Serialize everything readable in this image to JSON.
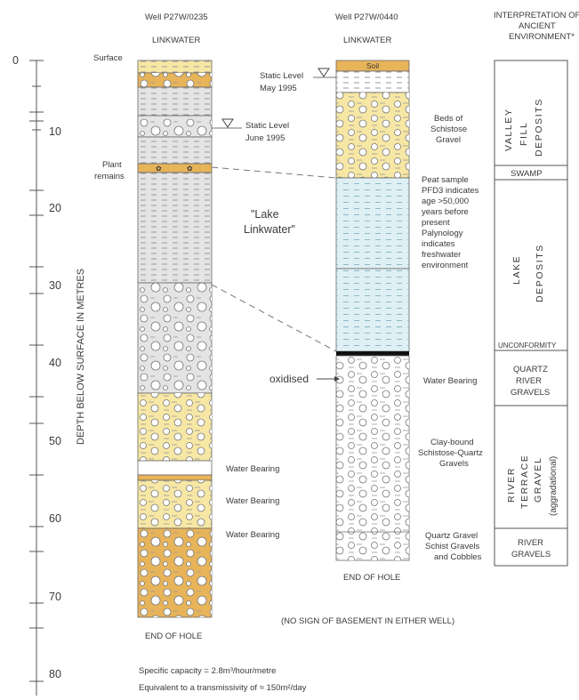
{
  "axis": {
    "label": "DEPTH BELOW SURFACE IN METRES",
    "ticks": [
      "0",
      "10",
      "20",
      "30",
      "40",
      "50",
      "60",
      "70",
      "80"
    ]
  },
  "well1": {
    "name": "Well P27W/0235",
    "location": "LINKWATER",
    "surface_label": "Surface",
    "static_level": "Static Level",
    "static_date": "June 1995",
    "plant_1": "Plant",
    "plant_2": "remains",
    "lake_1": "\"Lake",
    "lake_2": "Linkwater\"",
    "water_bearing_1": "Water Bearing",
    "water_bearing_2": "Water Bearing",
    "water_bearing_3": "Water Bearing",
    "end": "END OF HOLE"
  },
  "well2": {
    "name": "Well P27W/0440",
    "location": "LINKWATER",
    "soil": "Soil",
    "static_level": "Static Level",
    "static_date": "May 1995",
    "beds_1": "Beds of",
    "beds_2": "Schistose",
    "beds_3": "Gravel",
    "peat": [
      "Peat sample",
      "PFD3 indicates",
      "age >50,000",
      "years before",
      "present",
      "Palynology",
      "indicates",
      "freshwater",
      "environment"
    ],
    "oxidised": "oxidised",
    "water_bearing": "Water Bearing",
    "clay_1": "Clay-bound",
    "clay_2": "Schistose-Quartz",
    "clay_3": "Gravels",
    "quartz_1": "Quartz Gravel",
    "quartz_2": "Schist Gravels",
    "quartz_3": "and Cobbles",
    "end": "END OF HOLE"
  },
  "interpretation": {
    "header": [
      "INTERPRETATION OF",
      "ANCIENT",
      "ENVIRONMENT*"
    ],
    "valley": [
      "VALLEY",
      "FILL",
      "DEPOSITS"
    ],
    "swamp": "SWAMP",
    "lake": [
      "LAKE",
      "DEPOSITS"
    ],
    "unconformity": "UNCONFORMITY",
    "quartz": [
      "QUARTZ",
      "RIVER",
      "GRAVELS"
    ],
    "terrace": [
      "RIVER",
      "TERRACE",
      "GRAVEL",
      "(aggradational)"
    ],
    "river": [
      "RIVER",
      "GRAVELS"
    ]
  },
  "notes": {
    "basement": "(NO SIGN OF BASEMENT IN EITHER WELL)",
    "capacity": "Specific capacity = 2.8m³/hour/metre",
    "transmissivity": "Equivalent to a transmissivity of ≈ 150m²/day"
  },
  "colors": {
    "yellow": "#f7e7a4",
    "orange": "#e8b45a",
    "grey": "#e4e4e4",
    "blue": "#dff0f5",
    "black": "#111111",
    "line": "#555555"
  }
}
